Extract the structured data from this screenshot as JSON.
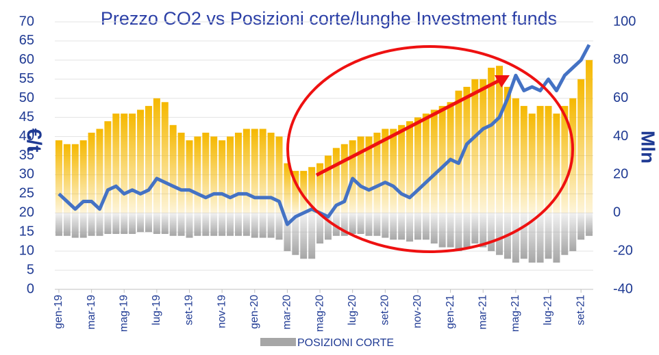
{
  "chart_data": {
    "type": "bar-line",
    "title": "Prezzo CO2 vs Posizioni corte/lunghe Investment funds",
    "y_label": "€/t",
    "y2_label": "Mln",
    "categories": [
      "gen-19",
      null,
      null,
      null,
      "mar-19",
      null,
      null,
      null,
      "mag-19",
      null,
      null,
      null,
      "lug-19",
      null,
      null,
      null,
      "set-19",
      null,
      null,
      null,
      "nov-19",
      null,
      null,
      null,
      "gen-20",
      null,
      null,
      null,
      "mar-20",
      null,
      null,
      null,
      "mag-20",
      null,
      null,
      null,
      "lug-20",
      null,
      null,
      null,
      "set-20",
      null,
      null,
      null,
      "nov-20",
      null,
      null,
      null,
      "gen-21",
      null,
      null,
      null,
      "mar-21",
      null,
      null,
      null,
      "mag-21",
      null,
      null,
      null,
      "lug-21",
      null,
      null,
      null,
      "set-21",
      null
    ],
    "series": [
      {
        "color": "#f5b800",
        "axis": "y2",
        "kind": "bar",
        "values": [
          38,
          36,
          36,
          38,
          42,
          44,
          48,
          52,
          52,
          52,
          54,
          56,
          60,
          58,
          46,
          42,
          38,
          40,
          42,
          40,
          38,
          40,
          42,
          44,
          44,
          44,
          42,
          40,
          26,
          22,
          22,
          24,
          26,
          30,
          34,
          36,
          38,
          40,
          40,
          42,
          44,
          44,
          46,
          48,
          50,
          52,
          54,
          56,
          58,
          64,
          66,
          70,
          70,
          76,
          77,
          66,
          60,
          56,
          52,
          56,
          56,
          52,
          56,
          60,
          70,
          80
        ]
      },
      {
        "name": "POSIZIONI CORTE",
        "color": "#a6a6a6",
        "axis": "y2",
        "kind": "bar",
        "values": [
          -12,
          -12,
          -13,
          -13,
          -12,
          -12,
          -11,
          -11,
          -11,
          -11,
          -10,
          -10,
          -11,
          -11,
          -12,
          -12,
          -13,
          -12,
          -12,
          -12,
          -12,
          -12,
          -12,
          -12,
          -13,
          -13,
          -13,
          -14,
          -20,
          -22,
          -24,
          -24,
          -16,
          -14,
          -12,
          -12,
          -11,
          -11,
          -12,
          -12,
          -13,
          -14,
          -14,
          -15,
          -14,
          -14,
          -16,
          -18,
          -18,
          -20,
          -18,
          -16,
          -18,
          -20,
          -22,
          -24,
          -26,
          -24,
          -26,
          -26,
          -24,
          -26,
          -22,
          -20,
          -14,
          -12
        ]
      },
      {
        "color": "#4472c4",
        "axis": "y",
        "kind": "line",
        "values": [
          25,
          23,
          21,
          23,
          23,
          21,
          26,
          27,
          25,
          26,
          25,
          26,
          29,
          28,
          27,
          26,
          26,
          25,
          24,
          25,
          25,
          24,
          25,
          25,
          24,
          24,
          24,
          23,
          17,
          19,
          20,
          21,
          20,
          19,
          22,
          23,
          29,
          27,
          26,
          27,
          28,
          27,
          25,
          24,
          26,
          28,
          30,
          32,
          34,
          33,
          38,
          40,
          42,
          43,
          45,
          50,
          56,
          52,
          53,
          52,
          55,
          52,
          56,
          58,
          60,
          64
        ]
      }
    ],
    "ylim": [
      0,
      70
    ],
    "yticks": [
      0,
      5,
      10,
      15,
      20,
      25,
      30,
      35,
      40,
      45,
      50,
      55,
      60,
      65,
      70
    ],
    "y2lim": [
      -40,
      100
    ],
    "y2ticks": [
      -40,
      -20,
      0,
      20,
      40,
      60,
      80,
      100
    ],
    "grid": true,
    "legend": "bottom"
  }
}
